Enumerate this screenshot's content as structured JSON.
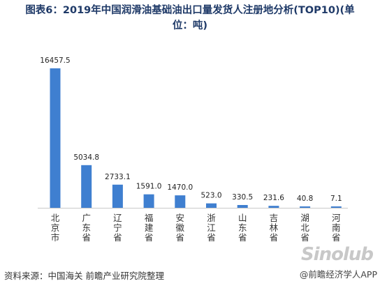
{
  "title": {
    "line1": "图表6：2019年中国润滑油基础油出口量发货人注册地分析(TOP10)(单",
    "line2": "位：吨)"
  },
  "source": "资料来源：中国海关 前瞻产业研究院整理",
  "watermark": "@前瞻经济学人APP",
  "site_mark": "Sinolub",
  "colors": {
    "bar": "#3f7fd0",
    "title": "#1f3a68",
    "axis": "#c8c8c8"
  },
  "chart_data": {
    "type": "bar",
    "title": "图表6：2019年中国润滑油基础油出口量发货人注册地分析(TOP10)(单位：吨)",
    "categories": [
      "北京市",
      "广东省",
      "辽宁省",
      "福建省",
      "安徽省",
      "浙江省",
      "山东省",
      "吉林省",
      "湖北省",
      "河南省"
    ],
    "values": [
      16457.5,
      5034.8,
      2733.1,
      1591.0,
      1470.0,
      523.0,
      330.5,
      231.6,
      40.8,
      7.1
    ],
    "value_labels": [
      "16457.5",
      "5034.8",
      "2733.1",
      "1591.0",
      "1470.0",
      "523.0",
      "330.5",
      "231.6",
      "40.8",
      "7.1"
    ],
    "ylim": [
      0,
      16457.5
    ],
    "grid": false,
    "legend": "none"
  }
}
